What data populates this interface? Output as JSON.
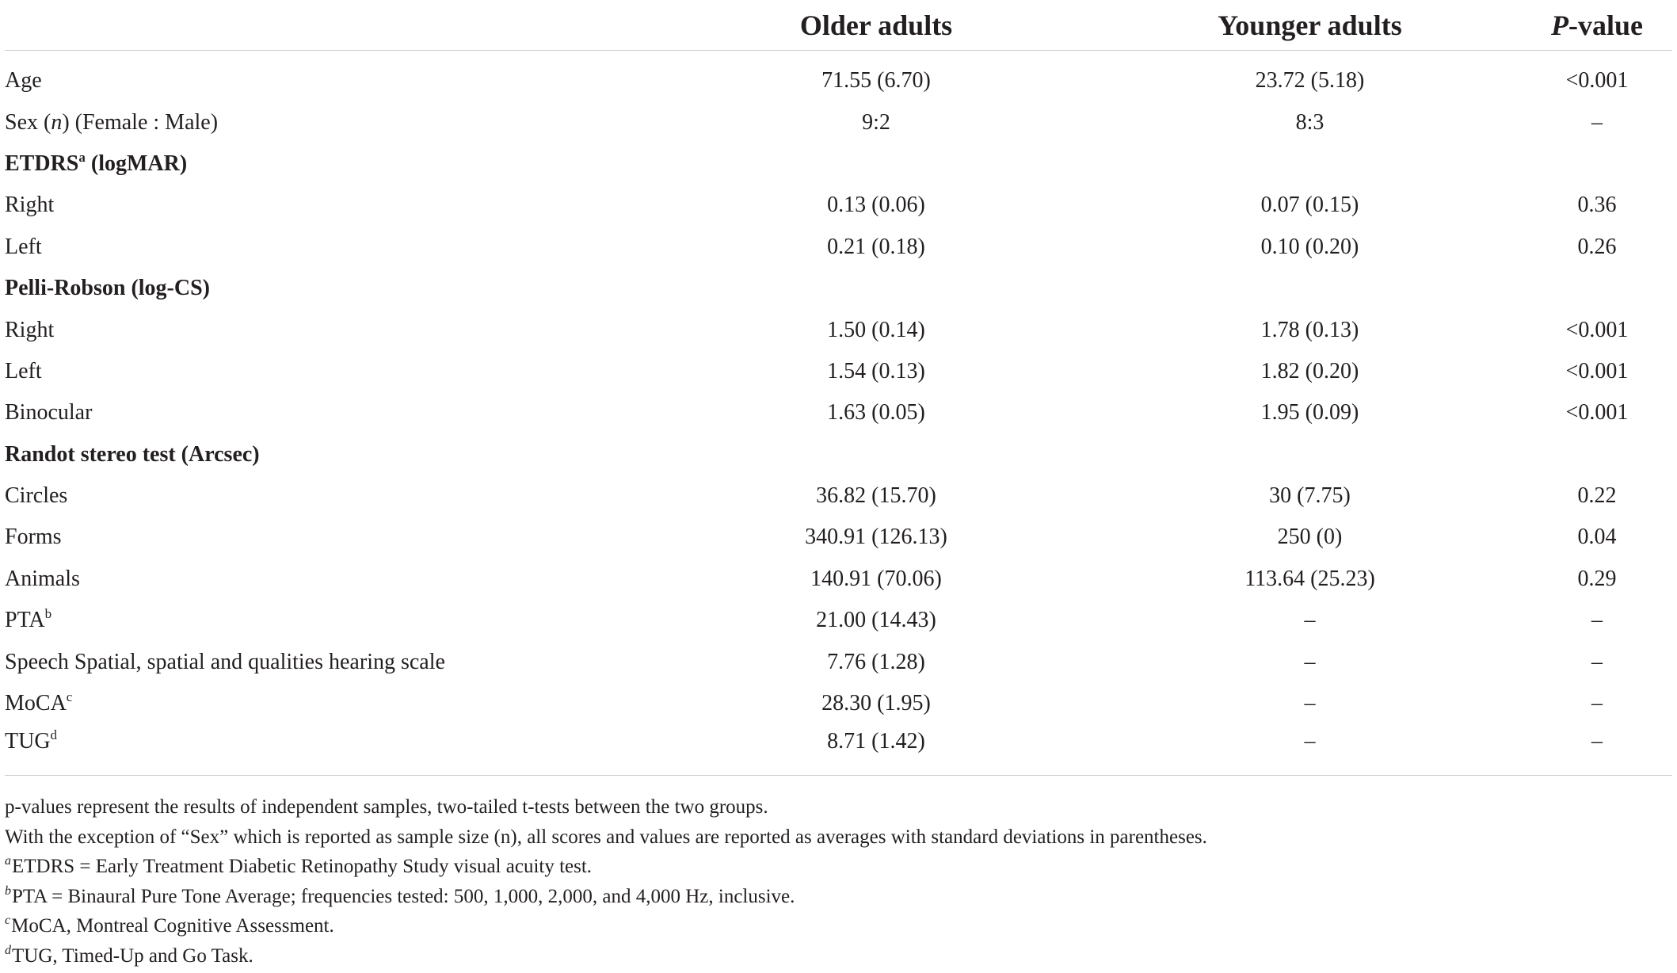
{
  "table": {
    "headers": {
      "label": "",
      "older": "Older adults",
      "younger": "Younger adults",
      "p_italic": "P",
      "p_rest": "-value"
    },
    "rows": [
      {
        "label": "Age",
        "older": "71.55 (6.70)",
        "younger": "23.72 (5.18)",
        "p": "<0.001"
      },
      {
        "label_pre": "Sex (",
        "label_italic": "n",
        "label_post": ") (Female : Male)",
        "older": "9:2",
        "younger": "8:3",
        "p": "–"
      },
      {
        "section": "ETDRS",
        "section_sup": "a",
        "section_post": " (logMAR)"
      },
      {
        "label": "Right",
        "older": "0.13 (0.06)",
        "younger": "0.07 (0.15)",
        "p": "0.36"
      },
      {
        "label": "Left",
        "older": "0.21 (0.18)",
        "younger": "0.10 (0.20)",
        "p": "0.26"
      },
      {
        "section": "Pelli-Robson (log-CS)"
      },
      {
        "label": "Right",
        "older": "1.50 (0.14)",
        "younger": "1.78 (0.13)",
        "p": "<0.001"
      },
      {
        "label": "Left",
        "older": "1.54 (0.13)",
        "younger": "1.82 (0.20)",
        "p": "<0.001"
      },
      {
        "label": "Binocular",
        "older": "1.63 (0.05)",
        "younger": "1.95 (0.09)",
        "p": "<0.001"
      },
      {
        "section": "Randot stereo test (Arcsec)"
      },
      {
        "label": "Circles",
        "older": "36.82 (15.70)",
        "younger": "30 (7.75)",
        "p": "0.22"
      },
      {
        "label": "Forms",
        "older": "340.91 (126.13)",
        "younger": "250 (0)",
        "p": "0.04"
      },
      {
        "label": "Animals",
        "older": "140.91 (70.06)",
        "younger": "113.64 (25.23)",
        "p": "0.29"
      },
      {
        "label": "PTA",
        "label_sup": "b",
        "older": "21.00 (14.43)",
        "younger": "–",
        "p": "–"
      },
      {
        "label": "Speech Spatial, spatial and qualities hearing scale",
        "older": "7.76 (1.28)",
        "younger": "–",
        "p": "–"
      },
      {
        "label": "MoCA",
        "label_sup": "c",
        "older": "28.30 (1.95)",
        "younger": "–",
        "p": "–"
      },
      {
        "label": "TUG",
        "label_sup": "d",
        "older": "8.71 (1.42)",
        "younger": "–",
        "p": "–"
      }
    ]
  },
  "footnotes": [
    {
      "text": "p-values represent the results of independent samples, two-tailed t-tests between the two groups."
    },
    {
      "text": "With the exception of “Sex” which is reported as sample size (n), all scores and values are reported as averages with standard deviations in parentheses."
    },
    {
      "mark": "a",
      "text": "ETDRS = Early Treatment Diabetic Retinopathy Study visual acuity test."
    },
    {
      "mark": "b",
      "text": "PTA = Binaural Pure Tone Average; frequencies tested: 500, 1,000, 2,000, and 4,000 Hz, inclusive."
    },
    {
      "mark": "c",
      "text": "MoCA, Montreal Cognitive Assessment."
    },
    {
      "mark": "d",
      "text": "TUG, Timed-Up and Go Task."
    }
  ]
}
